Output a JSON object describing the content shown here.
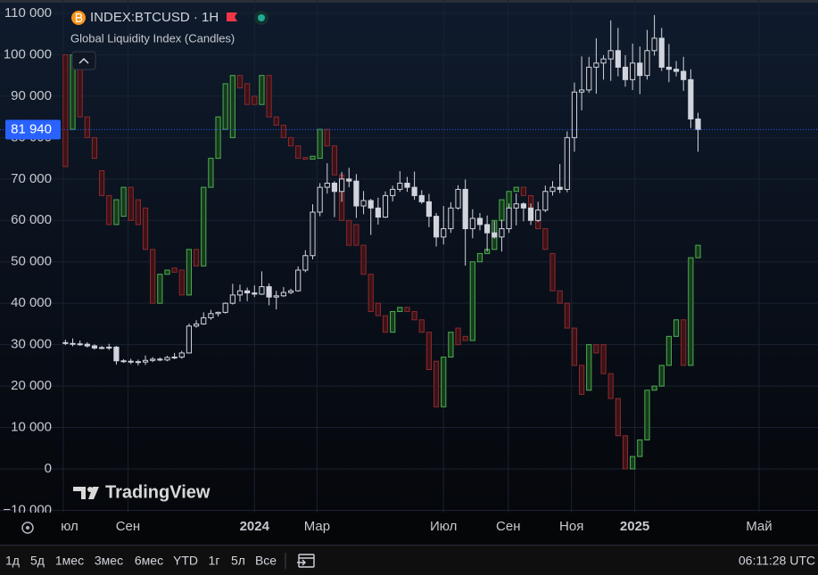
{
  "header": {
    "indicator_note": "Global Liquidity Index (Candles)",
    "watermark": "TradingView"
  },
  "chart_data": {
    "type": "candlestick",
    "xlim": [
      -35,
      77.5
    ],
    "ylim": [
      -10550,
      113230
    ],
    "grid": true,
    "xticks": [
      {
        "value": -26.3,
        "label": "юл"
      },
      {
        "value": -17.4,
        "label": "Сен"
      },
      {
        "value": 0,
        "label": "2024"
      },
      {
        "value": 8.6,
        "label": "Мар"
      },
      {
        "value": 26,
        "label": "Июл"
      },
      {
        "value": 34.9,
        "label": "Сен"
      },
      {
        "value": 43.6,
        "label": "Ноя"
      },
      {
        "value": 52.3,
        "label": "2025"
      },
      {
        "value": 69.4,
        "label": "Май"
      }
    ],
    "yticks": [
      {
        "value": 110000,
        "label": "110 000"
      },
      {
        "value": 100000,
        "label": "100 000"
      },
      {
        "value": 90000,
        "label": "90 000"
      },
      {
        "value": 80000,
        "label": "80 000"
      },
      {
        "value": 70000,
        "label": "70 000"
      },
      {
        "value": 60000,
        "label": "60 000"
      },
      {
        "value": 50000,
        "label": "50 000"
      },
      {
        "value": 40000,
        "label": "40 000"
      },
      {
        "value": 30000,
        "label": "30 000"
      },
      {
        "value": 20000,
        "label": "20 000"
      },
      {
        "value": 10000,
        "label": "10 000"
      },
      0,
      {
        "value": -10000,
        "label": "−10 000"
      }
    ],
    "last_price": {
      "value": 81940,
      "label": "81 940"
    },
    "series": [
      {
        "name": "Global Liquidity Index (Candles)",
        "up_color": "#4caf50",
        "down_color": "#8b2a2f",
        "x": [
          -26,
          -25,
          -24,
          -23,
          -22,
          -21,
          -20,
          -19,
          -18,
          -17,
          -16,
          -15,
          -14,
          -13,
          -12,
          -11,
          -10,
          -9,
          -8,
          -7,
          -6,
          -5,
          -4,
          -3,
          -2,
          -1,
          0,
          1,
          2,
          3,
          4,
          5,
          6,
          7,
          8,
          9,
          10,
          11,
          12,
          13,
          14,
          15,
          16,
          17,
          18,
          19,
          20,
          21,
          22,
          23,
          24,
          25,
          26,
          27,
          28,
          29,
          30,
          31,
          32,
          33,
          34,
          35,
          36,
          37,
          38,
          39,
          40,
          41,
          42,
          43,
          44,
          45,
          46,
          47,
          48,
          49,
          50,
          51,
          52,
          53,
          54,
          55,
          56,
          57,
          58,
          59,
          60,
          61
        ],
        "open": [
          100000,
          82000,
          100000,
          85000,
          80000,
          72000,
          66000,
          59000,
          61000,
          68000,
          65000,
          63000,
          53000,
          40000,
          47000,
          48500,
          48000,
          42000,
          53000,
          49000,
          68000,
          75000,
          82000,
          80000,
          95000,
          93000,
          90000,
          88000,
          95000,
          85000,
          83000,
          80000,
          78000,
          75200,
          74800,
          75000,
          82000,
          78000,
          71000,
          60000,
          59000,
          54000,
          47000,
          40000,
          37000,
          33000,
          38000,
          39000,
          38000,
          36000,
          33000,
          26000,
          15000,
          27000,
          34000,
          32000,
          31000,
          50000,
          52000,
          53000,
          60000,
          63000,
          67000,
          68000,
          66000,
          62000,
          58000,
          52000,
          43000,
          40000,
          34000,
          25000,
          19000,
          30000,
          30000,
          23000,
          17000,
          8000,
          0,
          3000,
          7000,
          19000,
          20000,
          25000,
          32000,
          36000,
          25000,
          51000
        ],
        "close": [
          73000,
          100000,
          85000,
          80000,
          75000,
          66000,
          59000,
          65000,
          68000,
          60000,
          59000,
          53000,
          40000,
          47000,
          48000,
          47500,
          42000,
          53000,
          49000,
          68000,
          75000,
          85000,
          93000,
          95000,
          92000,
          88000,
          88000,
          95000,
          85000,
          83000,
          80000,
          78000,
          75000,
          74800,
          75500,
          82000,
          78000,
          71000,
          60000,
          54000,
          54000,
          47000,
          38000,
          37000,
          33000,
          38000,
          39000,
          38000,
          36000,
          33000,
          24000,
          15000,
          27000,
          33000,
          30000,
          31000,
          50000,
          52000,
          53000,
          60000,
          65000,
          67000,
          68000,
          66000,
          62000,
          58000,
          53000,
          43000,
          40000,
          34000,
          25000,
          18000,
          30000,
          28000,
          23000,
          17000,
          8000,
          0,
          3000,
          7000,
          19000,
          20000,
          25000,
          32000,
          36000,
          25000,
          51000,
          54000
        ]
      },
      {
        "name": "INDEX:BTCUSD · 1H",
        "up_color": "#d1d4dc",
        "down_color": "#d1d4dc",
        "x": [
          -26,
          -25,
          -24,
          -23,
          -22,
          -21,
          -20,
          -19,
          -18,
          -17,
          -16,
          -15,
          -14,
          -13,
          -12,
          -11,
          -10,
          -9,
          -8,
          -7,
          -6,
          -5,
          -4,
          -3,
          -2,
          -1,
          0,
          1,
          2,
          3,
          4,
          5,
          6,
          7,
          8,
          9,
          10,
          11,
          12,
          13,
          14,
          15,
          16,
          17,
          18,
          19,
          20,
          21,
          22,
          23,
          24,
          25,
          26,
          27,
          28,
          29,
          30,
          31,
          32,
          33,
          34,
          35,
          36,
          37,
          38,
          39,
          40,
          41,
          42,
          43,
          44,
          45,
          46,
          47,
          48,
          49,
          50,
          51,
          52,
          53,
          54,
          55,
          56,
          57,
          58,
          59,
          60,
          61
        ],
        "open": [
          30500,
          30300,
          30200,
          30100,
          29700,
          29200,
          29300,
          29400,
          26100,
          26000,
          25900,
          25800,
          26200,
          26500,
          26300,
          26900,
          27000,
          28000,
          34500,
          35000,
          36500,
          37500,
          37800,
          40000,
          42000,
          43000,
          42500,
          42200,
          44000,
          41500,
          41800,
          42600,
          43000,
          48000,
          51500,
          62000,
          68000,
          69000,
          67000,
          70000,
          69500,
          63500,
          64800,
          63000,
          60800,
          66000,
          67500,
          69000,
          68000,
          66000,
          64500,
          61000,
          56000,
          58000,
          63000,
          67500,
          58000,
          60500,
          59000,
          57000,
          56000,
          58000,
          63000,
          64000,
          63000,
          60000,
          62500,
          67000,
          68000,
          67500,
          80000,
          91000,
          91500,
          97000,
          98000,
          99000,
          101000,
          97000,
          94000,
          98000,
          95000,
          101000,
          104000,
          97000,
          96500,
          96000,
          94000,
          84500
        ],
        "high": [
          31200,
          31500,
          31000,
          30600,
          30100,
          29700,
          30200,
          29700,
          26500,
          26600,
          26400,
          27400,
          27000,
          26900,
          27300,
          28000,
          28500,
          35100,
          35900,
          37800,
          38400,
          38000,
          40200,
          44700,
          44500,
          43800,
          44300,
          47700,
          44800,
          43000,
          43900,
          43500,
          48900,
          52800,
          63900,
          69000,
          73800,
          69500,
          71700,
          72700,
          71200,
          67100,
          65200,
          65500,
          67000,
          68400,
          71900,
          70500,
          71800,
          67300,
          66400,
          61800,
          63500,
          64400,
          68500,
          69900,
          62700,
          61800,
          61200,
          59800,
          60200,
          64100,
          66500,
          64400,
          64100,
          64500,
          68400,
          69500,
          73600,
          81500,
          93300,
          99600,
          99500,
          104000,
          99900,
          108300,
          106500,
          99900,
          102700,
          102000,
          106000,
          109600,
          106500,
          102600,
          98500,
          99500,
          96500,
          86000
        ],
        "low": [
          29900,
          29600,
          29700,
          29300,
          28800,
          28900,
          28700,
          25200,
          25600,
          25300,
          25000,
          25100,
          25800,
          26000,
          26000,
          26500,
          26600,
          27900,
          34100,
          34800,
          36000,
          36800,
          37500,
          39700,
          40400,
          40500,
          41500,
          42000,
          39500,
          38500,
          41500,
          42200,
          42800,
          47500,
          50600,
          61000,
          66500,
          60800,
          64500,
          68000,
          60600,
          61500,
          56500,
          59000,
          60600,
          64600,
          66900,
          66900,
          65000,
          64000,
          58400,
          53700,
          54200,
          57000,
          62600,
          49100,
          55700,
          57600,
          52500,
          55600,
          52500,
          57000,
          58800,
          59800,
          58900,
          59600,
          62000,
          66000,
          66600,
          66800,
          76600,
          86600,
          90800,
          90600,
          94000,
          93700,
          94800,
          92300,
          91500,
          90500,
          94000,
          99800,
          96100,
          93400,
          94800,
          91300,
          82300,
          76600
        ],
        "close": [
          30300,
          30200,
          30100,
          29700,
          29200,
          29300,
          29400,
          26100,
          26000,
          25900,
          25800,
          26200,
          26500,
          26300,
          26900,
          27000,
          28000,
          34500,
          35000,
          36500,
          37500,
          37800,
          40000,
          42000,
          43000,
          42500,
          42200,
          44000,
          41500,
          41800,
          42600,
          43000,
          48000,
          51500,
          62000,
          68000,
          69000,
          67000,
          70000,
          69500,
          63500,
          64800,
          63000,
          60800,
          66000,
          67500,
          69000,
          68000,
          66000,
          64500,
          61000,
          56000,
          58000,
          63000,
          67500,
          58000,
          60500,
          59000,
          57000,
          56000,
          58000,
          63000,
          64000,
          63000,
          60000,
          62500,
          67000,
          68000,
          67500,
          80000,
          91000,
          91500,
          97000,
          98000,
          99000,
          101000,
          97000,
          94000,
          98000,
          95000,
          101000,
          104000,
          97000,
          96500,
          96000,
          94000,
          84500,
          81940
        ]
      }
    ]
  },
  "toolbar": {
    "ranges": [
      "1д",
      "5д",
      "1мес",
      "3мес",
      "6мес",
      "YTD",
      "1г",
      "5л",
      "Все"
    ],
    "clock": "06:11:28 UTC"
  }
}
